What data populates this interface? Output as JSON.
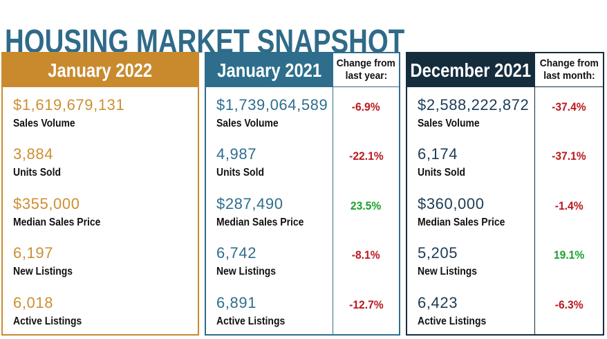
{
  "title": "HOUSING MARKET SNAPSHOT",
  "colors": {
    "title": "#2F6B89",
    "gold_accent": "#C98A2E",
    "gold_value": "#CC8F33",
    "teal_accent": "#2E6E8C",
    "teal_value": "#2E6E8E",
    "navy_accent": "#152C3D",
    "navy_value": "#1C3B54",
    "negative_red": "#B9191F",
    "positive_green": "#1CA22B",
    "label_black": "#111111"
  },
  "panels": [
    {
      "header": "January 2022",
      "metrics": [
        {
          "value": "$1,619,679,131",
          "label": "Sales Volume"
        },
        {
          "value": "3,884",
          "label": "Units Sold"
        },
        {
          "value": "$355,000",
          "label": "Median Sales Price"
        },
        {
          "value": "6,197",
          "label": "New Listings"
        },
        {
          "value": "6,018",
          "label": "Active Listings"
        }
      ]
    },
    {
      "header": "January 2021",
      "change_header_line1": "Change from",
      "change_header_line2": "last year:",
      "metrics": [
        {
          "value": "$1,739,064,589",
          "label": "Sales Volume",
          "change": "-6.9%",
          "direction": "down"
        },
        {
          "value": "4,987",
          "label": "Units Sold",
          "change": "-22.1%",
          "direction": "down"
        },
        {
          "value": "$287,490",
          "label": "Median Sales Price",
          "change": "23.5%",
          "direction": "up"
        },
        {
          "value": "6,742",
          "label": "New Listings",
          "change": "-8.1%",
          "direction": "down"
        },
        {
          "value": "6,891",
          "label": "Active Listings",
          "change": "-12.7%",
          "direction": "down"
        }
      ]
    },
    {
      "header": "December 2021",
      "change_header_line1": "Change from",
      "change_header_line2": "last month:",
      "metrics": [
        {
          "value": "$2,588,222,872",
          "label": "Sales Volume",
          "change": "-37.4%",
          "direction": "down"
        },
        {
          "value": "6,174",
          "label": "Units Sold",
          "change": "-37.1%",
          "direction": "down"
        },
        {
          "value": "$360,000",
          "label": "Median Sales Price",
          "change": "-1.4%",
          "direction": "down"
        },
        {
          "value": "5,205",
          "label": "New Listings",
          "change": "19.1%",
          "direction": "up"
        },
        {
          "value": "6,423",
          "label": "Active Listings",
          "change": "-6.3%",
          "direction": "down"
        }
      ]
    }
  ],
  "chart_data": {
    "type": "table",
    "title": "HOUSING MARKET SNAPSHOT",
    "columns": [
      "Metric",
      "January 2022",
      "January 2021",
      "Change from last year",
      "December 2021",
      "Change from last month"
    ],
    "rows": [
      [
        "Sales Volume",
        "$1,619,679,131",
        "$1,739,064,589",
        "-6.9%",
        "$2,588,222,872",
        "-37.4%"
      ],
      [
        "Units Sold",
        "3,884",
        "4,987",
        "-22.1%",
        "6,174",
        "-37.1%"
      ],
      [
        "Median Sales Price",
        "$355,000",
        "$287,490",
        "23.5%",
        "$360,000",
        "-1.4%"
      ],
      [
        "New Listings",
        "6,197",
        "6,742",
        "-8.1%",
        "5,205",
        "19.1%"
      ],
      [
        "Active Listings",
        "6,018",
        "6,891",
        "-12.7%",
        "6,423",
        "-6.3%"
      ]
    ]
  }
}
